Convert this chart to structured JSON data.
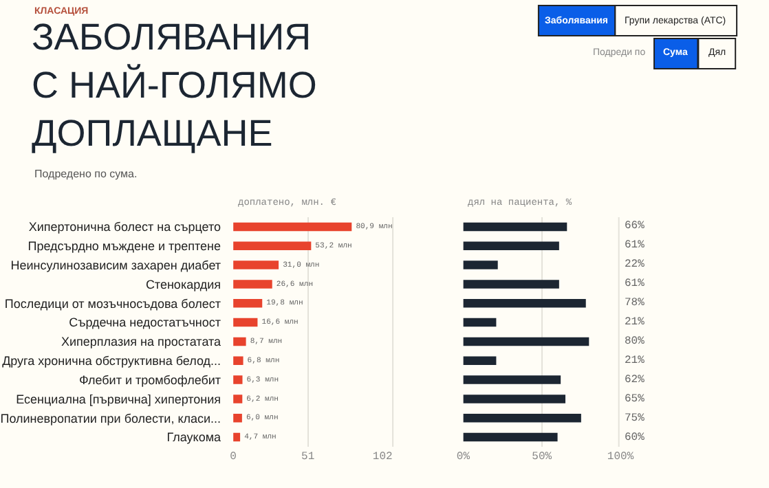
{
  "chart_data": [
    {
      "type": "bar",
      "orientation": "horizontal",
      "title": "ЗАБОЛЯВАНИЯ С НАЙ-ГОЛЯМО ДОПЛАЩАНЕ",
      "subtitle": "Подредено по сума.",
      "xlabel": "доплатено, млн. €",
      "annotations": [
        "КЛАСАЦИЯ",
        "Заболявания",
        "Групи лекарства (АТС)",
        "Подреди по",
        "Сума",
        "Дял"
      ],
      "categories": [
        "Хипертонична болест на сърцето",
        "Предсърдно мъждене и трептене",
        "Неинсулинозависим захарен диабет",
        "Стенокардия",
        "Последици от мозъчносъдова болест",
        "Сърдечна недостатъчност",
        "Хиперплазия на простатата",
        "Друга хронична обструктивна белод...",
        "Флебит и тромбофлебит",
        "Есенциална [първична] хипертония",
        "Полиневропатии при болести, класи...",
        "Глаукома"
      ],
      "values": [
        80.9,
        53.2,
        31.0,
        26.6,
        19.8,
        16.6,
        8.7,
        6.8,
        6.3,
        6.2,
        6.0,
        4.7
      ],
      "value_labels": [
        "80,9 млн",
        "53,2 млн",
        "31,0 млн",
        "26,6 млн",
        "19,8 млн",
        "16,6 млн",
        "8,7 млн",
        "6,8 млн",
        "6,3 млн",
        "6,2 млн",
        "6,0 млн",
        "4,7 млн"
      ],
      "color": "#e8432d",
      "xlim": [
        0,
        102
      ],
      "xticks": [
        0,
        51,
        102
      ],
      "grid": "x"
    },
    {
      "type": "bar",
      "orientation": "horizontal",
      "xlabel": "дял на пациента, %",
      "categories": [
        "Хипертонична болест на сърцето",
        "Предсърдно мъждене и трептене",
        "Неинсулинозависим захарен диабет",
        "Стенокардия",
        "Последици от мозъчносъдова болест",
        "Сърдечна недостатъчност",
        "Хиперплазия на простатата",
        "Друга хронична обструктивна белод...",
        "Флебит и тромбофлебит",
        "Есенциална [първична] хипертония",
        "Полиневропатии при болести, класи...",
        "Глаукома"
      ],
      "values": [
        66,
        61,
        22,
        61,
        78,
        21,
        80,
        21,
        62,
        65,
        75,
        60
      ],
      "value_labels": [
        "66%",
        "61%",
        "22%",
        "61%",
        "78%",
        "21%",
        "80%",
        "21%",
        "62%",
        "65%",
        "75%",
        "60%"
      ],
      "color": "#1c2632",
      "xlim": [
        0,
        100
      ],
      "xticks": [
        {
          "value": 0,
          "label": "0%"
        },
        {
          "value": 50,
          "label": "50%"
        },
        {
          "value": 100,
          "label": "100%"
        }
      ],
      "grid": "x",
      "tick_labels": "x"
    }
  ]
}
